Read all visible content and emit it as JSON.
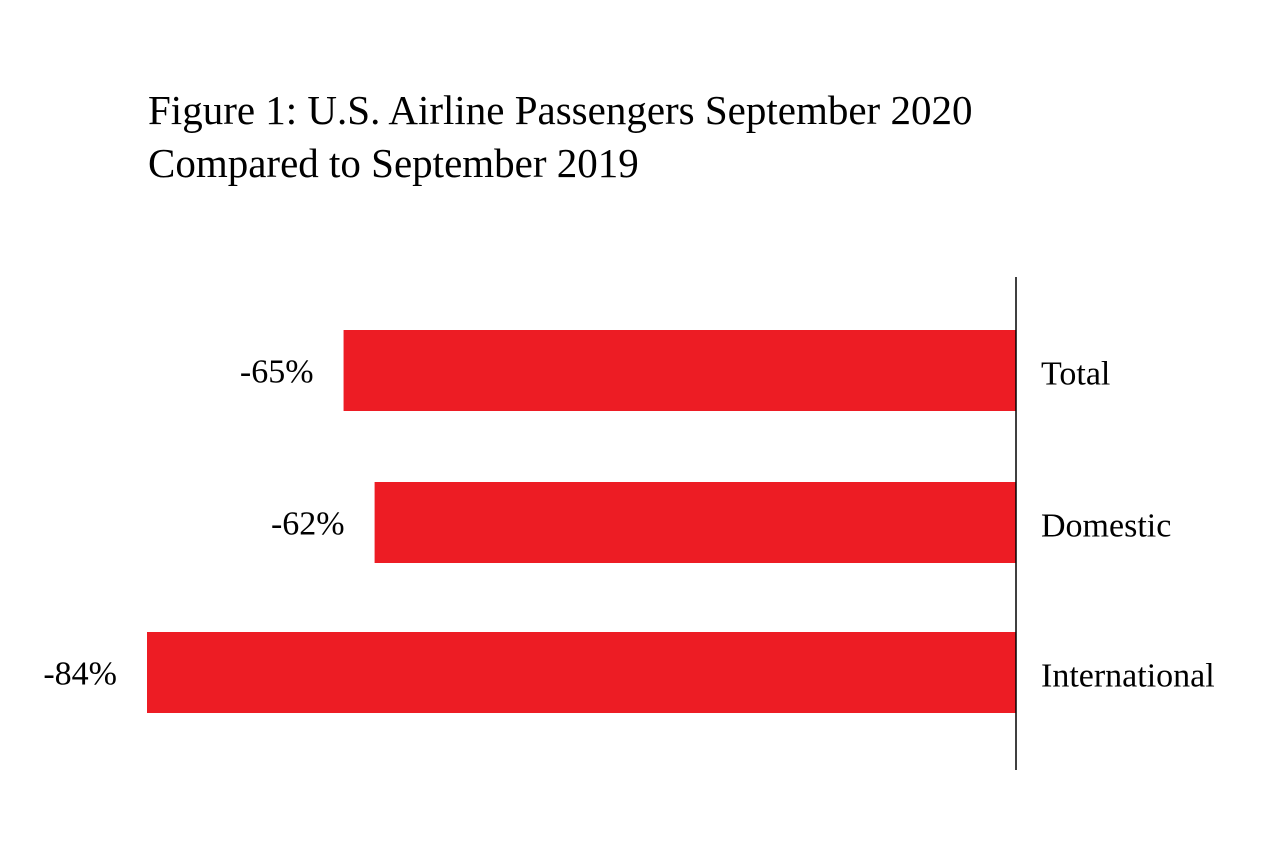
{
  "chart_data": {
    "type": "bar",
    "orientation": "horizontal",
    "title_lines": [
      "Figure 1: U.S. Airline Passengers September 2020",
      "Compared to September 2019"
    ],
    "title": "Figure 1: U.S. Airline Passengers September 2020 Compared to September 2019",
    "categories": [
      "Total",
      "Domestic",
      "International"
    ],
    "values": [
      -65,
      -62,
      -84
    ],
    "data_labels": [
      "-65%",
      "-62%",
      "-84%"
    ],
    "unit": "%",
    "xlabel": "",
    "ylabel": "",
    "xlim": [
      -84,
      0
    ],
    "grid": false,
    "legend": "none",
    "bar_color": "#ed1c24"
  }
}
